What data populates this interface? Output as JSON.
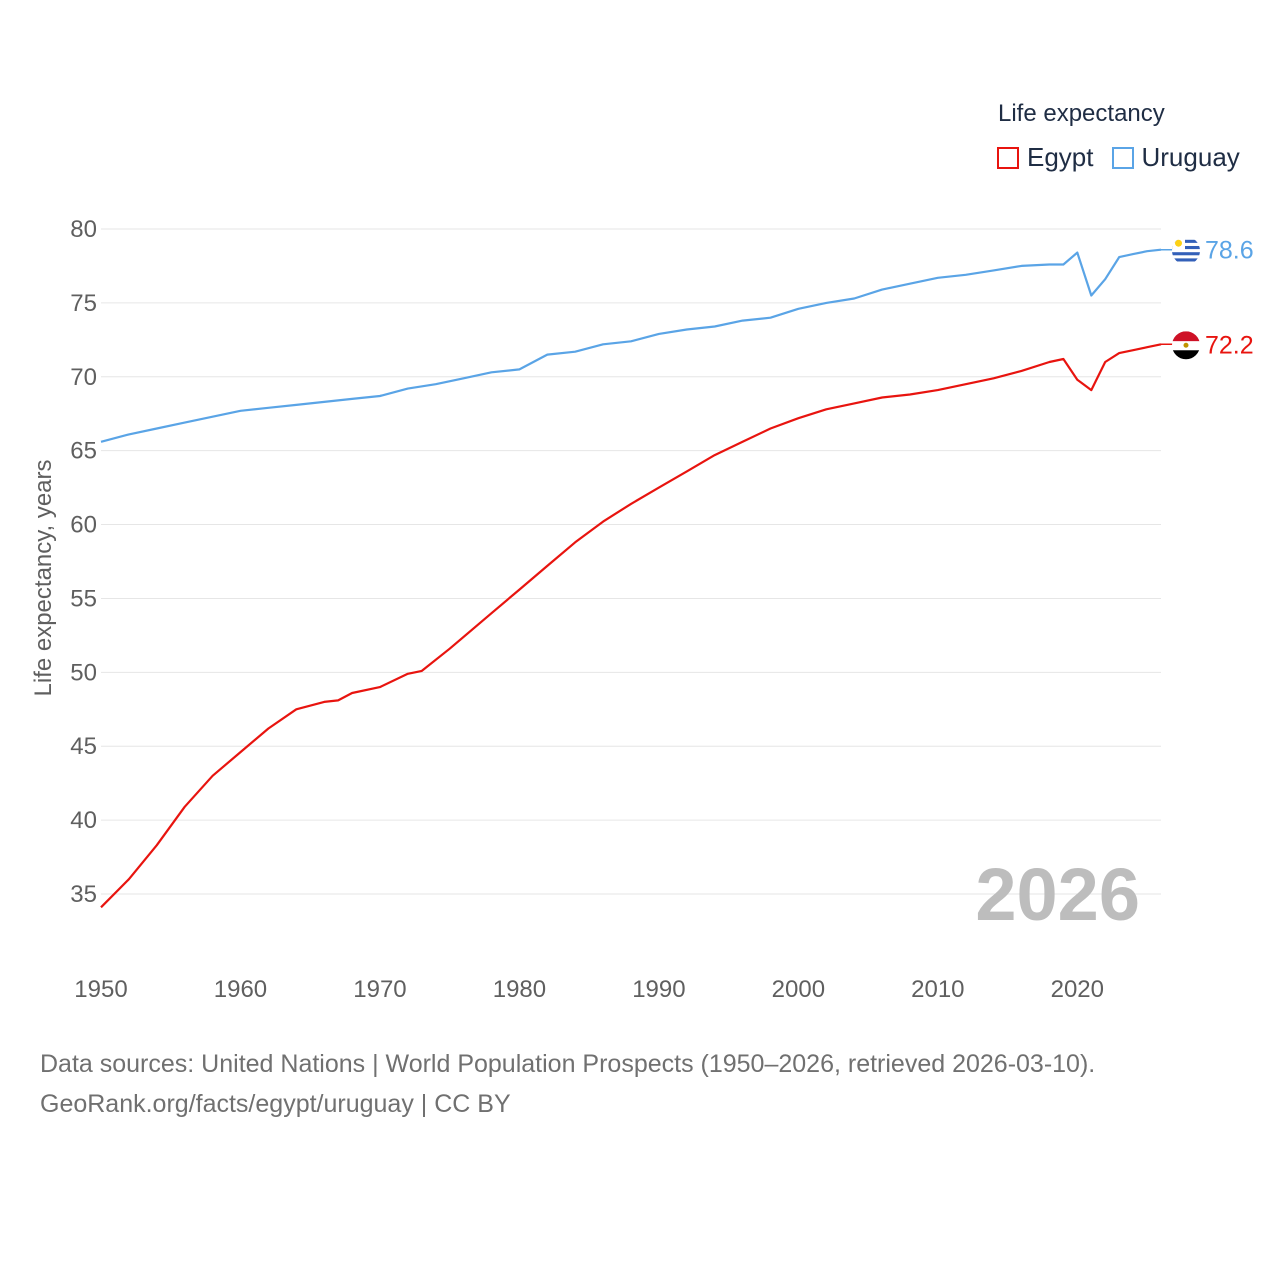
{
  "legend": {
    "title": "Life expectancy",
    "items": [
      {
        "label": "Egypt",
        "color": "#e8140f"
      },
      {
        "label": "Uruguay",
        "color": "#5aa4e6"
      }
    ]
  },
  "source": {
    "line1": "Data sources: United Nations | World Population Prospects (1950–2026, retrieved 2026-03-10).",
    "line2": "GeoRank.org/facts/egypt/uruguay | CC BY"
  },
  "chart_data": {
    "type": "line",
    "title": "Life expectancy",
    "xlabel": "",
    "ylabel": "Life expectancy, years",
    "xlim": [
      1950,
      2026
    ],
    "ylim": [
      32,
      80
    ],
    "x_ticks": [
      1950,
      1960,
      1970,
      1980,
      1990,
      2000,
      2010,
      2020
    ],
    "y_ticks": [
      35,
      40,
      45,
      50,
      55,
      60,
      65,
      70,
      75,
      80
    ],
    "grid": true,
    "current_year_label": "2026",
    "series": [
      {
        "name": "Egypt",
        "color": "#e8140f",
        "end_label": "72.2",
        "flag": "egypt-flag-icon",
        "points": [
          [
            1950,
            34.1
          ],
          [
            1952,
            36.0
          ],
          [
            1954,
            38.3
          ],
          [
            1956,
            40.9
          ],
          [
            1958,
            43.0
          ],
          [
            1960,
            44.6
          ],
          [
            1962,
            46.2
          ],
          [
            1964,
            47.5
          ],
          [
            1966,
            48.0
          ],
          [
            1967,
            48.1
          ],
          [
            1968,
            48.6
          ],
          [
            1970,
            49.0
          ],
          [
            1972,
            49.9
          ],
          [
            1973,
            50.1
          ],
          [
            1975,
            51.6
          ],
          [
            1978,
            54.0
          ],
          [
            1980,
            55.6
          ],
          [
            1982,
            57.2
          ],
          [
            1984,
            58.8
          ],
          [
            1986,
            60.2
          ],
          [
            1988,
            61.4
          ],
          [
            1990,
            62.5
          ],
          [
            1992,
            63.6
          ],
          [
            1994,
            64.7
          ],
          [
            1996,
            65.6
          ],
          [
            1998,
            66.5
          ],
          [
            2000,
            67.2
          ],
          [
            2002,
            67.8
          ],
          [
            2004,
            68.2
          ],
          [
            2006,
            68.6
          ],
          [
            2008,
            68.8
          ],
          [
            2010,
            69.1
          ],
          [
            2012,
            69.5
          ],
          [
            2014,
            69.9
          ],
          [
            2016,
            70.4
          ],
          [
            2018,
            71.0
          ],
          [
            2019,
            71.2
          ],
          [
            2020,
            69.8
          ],
          [
            2021,
            69.1
          ],
          [
            2022,
            71.0
          ],
          [
            2023,
            71.6
          ],
          [
            2024,
            71.8
          ],
          [
            2025,
            72.0
          ],
          [
            2026,
            72.2
          ]
        ]
      },
      {
        "name": "Uruguay",
        "color": "#5aa4e6",
        "end_label": "78.6",
        "flag": "uruguay-flag-icon",
        "points": [
          [
            1950,
            65.6
          ],
          [
            1952,
            66.1
          ],
          [
            1954,
            66.5
          ],
          [
            1956,
            66.9
          ],
          [
            1958,
            67.3
          ],
          [
            1960,
            67.7
          ],
          [
            1962,
            67.9
          ],
          [
            1964,
            68.1
          ],
          [
            1966,
            68.3
          ],
          [
            1968,
            68.5
          ],
          [
            1970,
            68.7
          ],
          [
            1972,
            69.2
          ],
          [
            1974,
            69.5
          ],
          [
            1976,
            69.9
          ],
          [
            1978,
            70.3
          ],
          [
            1980,
            70.5
          ],
          [
            1982,
            71.5
          ],
          [
            1984,
            71.7
          ],
          [
            1986,
            72.2
          ],
          [
            1988,
            72.4
          ],
          [
            1990,
            72.9
          ],
          [
            1992,
            73.2
          ],
          [
            1994,
            73.4
          ],
          [
            1996,
            73.8
          ],
          [
            1998,
            74.0
          ],
          [
            2000,
            74.6
          ],
          [
            2002,
            75.0
          ],
          [
            2004,
            75.3
          ],
          [
            2006,
            75.9
          ],
          [
            2008,
            76.3
          ],
          [
            2010,
            76.7
          ],
          [
            2012,
            76.9
          ],
          [
            2014,
            77.2
          ],
          [
            2016,
            77.5
          ],
          [
            2018,
            77.6
          ],
          [
            2019,
            77.6
          ],
          [
            2020,
            78.4
          ],
          [
            2021,
            75.5
          ],
          [
            2022,
            76.6
          ],
          [
            2023,
            78.1
          ],
          [
            2024,
            78.3
          ],
          [
            2025,
            78.5
          ],
          [
            2026,
            78.6
          ]
        ]
      }
    ]
  }
}
